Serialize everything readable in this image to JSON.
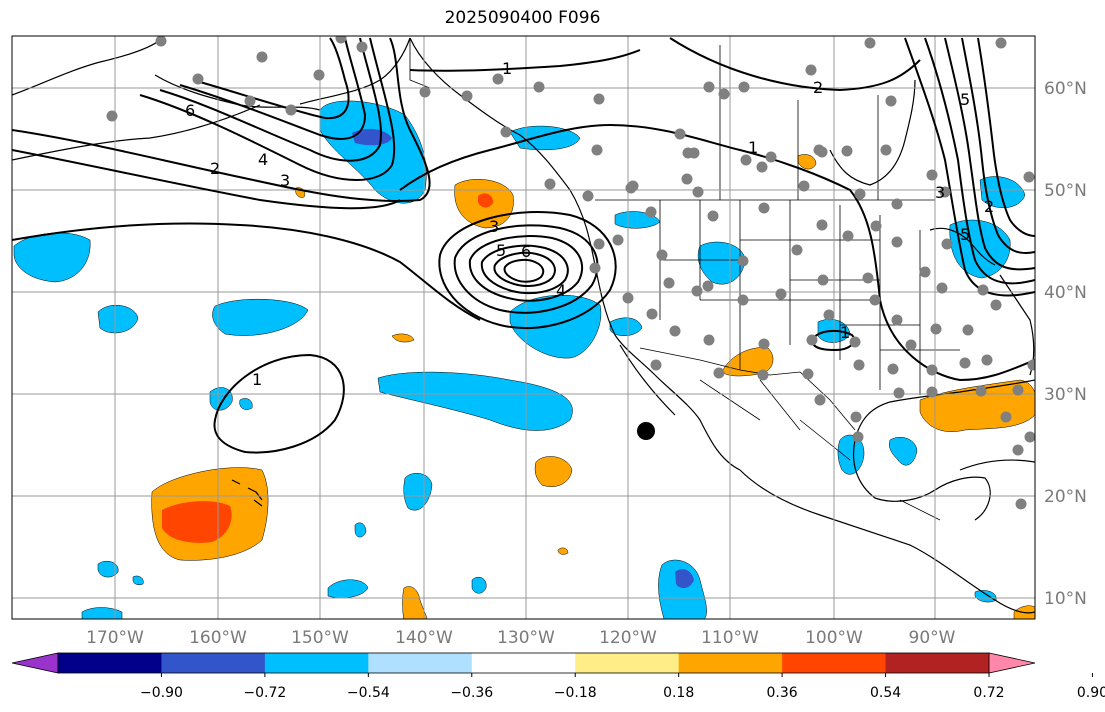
{
  "title": "2025090400 F096",
  "map": {
    "lon_range": [
      -180,
      -80
    ],
    "lat_range": [
      8,
      65
    ],
    "lon_ticks": [
      "170°W",
      "160°W",
      "150°W",
      "140°W",
      "130°W",
      "120°W",
      "110°W",
      "100°W",
      "90°W"
    ],
    "lat_ticks": [
      "60°N",
      "50°N",
      "40°N",
      "30°N",
      "20°N",
      "10°N"
    ],
    "grid": true
  },
  "colorbar": {
    "tick_labels": [
      "−0.90",
      "−0.72",
      "−0.54",
      "−0.36",
      "−0.18",
      "0.18",
      "0.36",
      "0.54",
      "0.72",
      "0.90"
    ],
    "colors": [
      "#9933cc",
      "#00008b",
      "#3355cc",
      "#00bfff",
      "#b0e0ff",
      "#ffffff",
      "#ffee88",
      "#ffa500",
      "#ff4500",
      "#b22222",
      "#ff88aa"
    ],
    "extend": "both"
  },
  "contour_labels": [
    "1",
    "2",
    "6",
    "4",
    "3",
    "2",
    "1",
    "3",
    "5",
    "6",
    "4",
    "1",
    "2",
    "5",
    "3",
    "1",
    "5"
  ],
  "marker": {
    "color": "#000000"
  },
  "station_color": "#808080"
}
